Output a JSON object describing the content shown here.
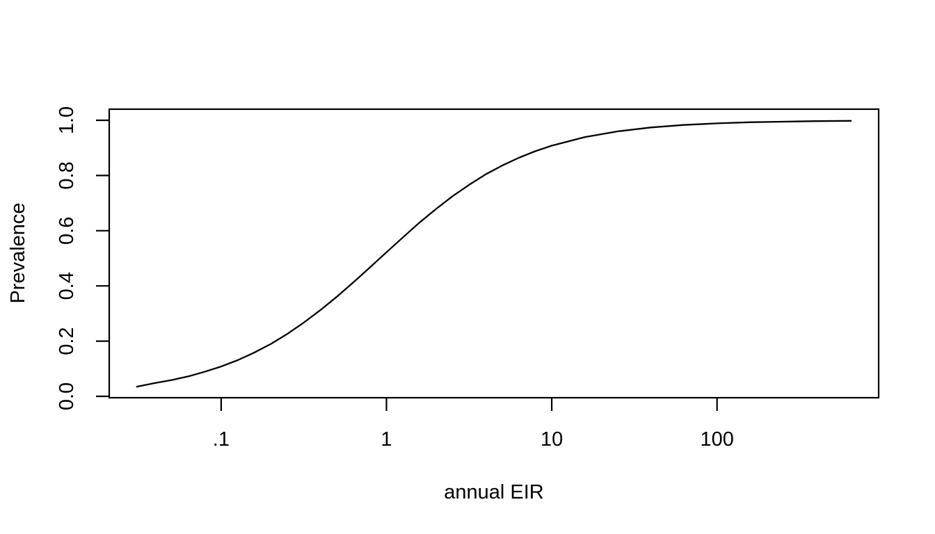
{
  "figure": {
    "background_color": "#ffffff",
    "foreground_color": "#000000"
  },
  "chart_data": {
    "type": "line",
    "title": "",
    "xlabel": "annual EIR",
    "ylabel": "Prevalence",
    "x_scale": "log10",
    "xlim": [
      0.031,
      650
    ],
    "ylim": [
      0.0,
      1.0
    ],
    "grid": false,
    "legend": "none",
    "frame": "full-box",
    "x_ticks": [
      {
        "value": 0.1,
        "label": ".1"
      },
      {
        "value": 1,
        "label": "1"
      },
      {
        "value": 10,
        "label": "10"
      },
      {
        "value": 100,
        "label": "100"
      }
    ],
    "y_ticks": [
      {
        "value": 0.0,
        "label": "0.0"
      },
      {
        "value": 0.2,
        "label": "0.2"
      },
      {
        "value": 0.4,
        "label": "0.4"
      },
      {
        "value": 0.6,
        "label": "0.6"
      },
      {
        "value": 0.8,
        "label": "0.8"
      },
      {
        "value": 1.0,
        "label": "1.0"
      }
    ],
    "series": [
      {
        "name": "prevalence_vs_annual_EIR",
        "color": "#000000",
        "points": [
          [
            0.0309,
            0.035
          ],
          [
            0.0398,
            0.048
          ],
          [
            0.0501,
            0.059
          ],
          [
            0.0631,
            0.072
          ],
          [
            0.0794,
            0.089
          ],
          [
            0.1,
            0.108
          ],
          [
            0.126,
            0.131
          ],
          [
            0.158,
            0.158
          ],
          [
            0.2,
            0.19
          ],
          [
            0.251,
            0.226
          ],
          [
            0.316,
            0.267
          ],
          [
            0.398,
            0.312
          ],
          [
            0.501,
            0.361
          ],
          [
            0.631,
            0.413
          ],
          [
            0.794,
            0.467
          ],
          [
            1.0,
            0.522
          ],
          [
            1.26,
            0.576
          ],
          [
            1.58,
            0.629
          ],
          [
            2.0,
            0.679
          ],
          [
            2.51,
            0.725
          ],
          [
            3.16,
            0.766
          ],
          [
            3.98,
            0.804
          ],
          [
            5.01,
            0.836
          ],
          [
            6.31,
            0.864
          ],
          [
            7.94,
            0.888
          ],
          [
            10.0,
            0.908
          ],
          [
            15.8,
            0.939
          ],
          [
            25.1,
            0.96
          ],
          [
            39.8,
            0.974
          ],
          [
            63.1,
            0.983
          ],
          [
            100.0,
            0.989
          ],
          [
            158.0,
            0.993
          ],
          [
            251.0,
            0.995
          ],
          [
            398.0,
            0.997
          ],
          [
            646.0,
            0.998
          ]
        ]
      }
    ]
  }
}
